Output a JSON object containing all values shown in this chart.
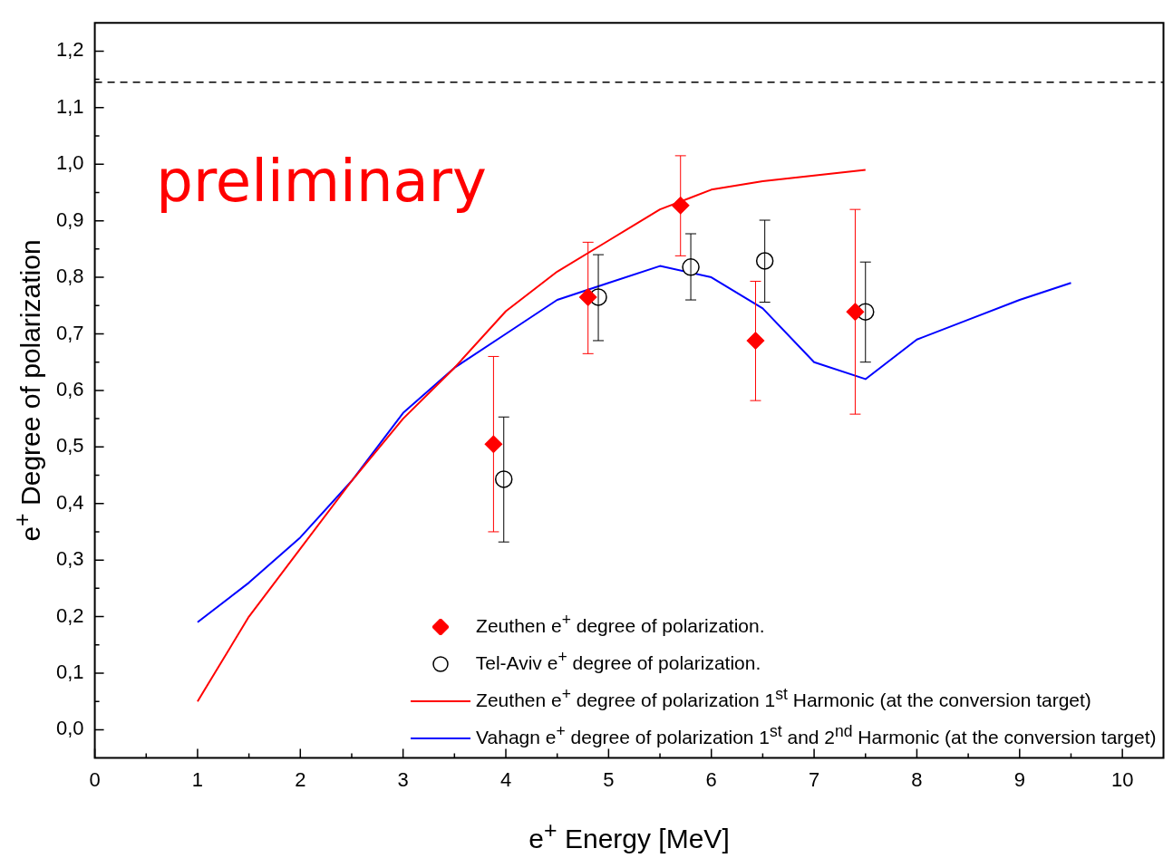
{
  "chart_data": {
    "type": "scatter",
    "xlabel": "e$^{+}$ Energy [MeV]",
    "ylabel": "e$^{+}$ Degree of polarization",
    "xlim": [
      0,
      10.4
    ],
    "ylim": [
      -0.05,
      1.25
    ],
    "xticks": [
      0,
      1,
      2,
      3,
      4,
      5,
      6,
      7,
      8,
      9,
      10
    ],
    "yticks": [
      {
        "value": 0,
        "label": "0,0"
      },
      {
        "value": 0.1,
        "label": "0,1"
      },
      {
        "value": 0.2,
        "label": "0,2"
      },
      {
        "value": 0.3,
        "label": "0,3"
      },
      {
        "value": 0.4,
        "label": "0,4"
      },
      {
        "value": 0.5,
        "label": "0,5"
      },
      {
        "value": 0.6,
        "label": "0,6"
      },
      {
        "value": 0.7,
        "label": "0,7"
      },
      {
        "value": 0.8,
        "label": "0,8"
      },
      {
        "value": 0.9,
        "label": "0,9"
      },
      {
        "value": 1.0,
        "label": "1,0"
      },
      {
        "value": 1.1,
        "label": "1,1"
      },
      {
        "value": 1.2,
        "label": "1,2"
      }
    ],
    "grid": false,
    "legend": "bottom right",
    "annotations": [
      "preliminary"
    ],
    "ref_lines": [
      {
        "axis": "y",
        "value": 1.145,
        "color": "#000000",
        "line_style": "dashed"
      }
    ],
    "series": [
      {
        "name": "Zeuthen e$^{+}$ degree of polarization.",
        "type": "scatter",
        "marker": "diamond",
        "color": "#ff0000",
        "x": [
          3.88,
          4.8,
          5.7,
          6.43,
          7.4
        ],
        "values": [
          0.505,
          0.765,
          0.927,
          0.688,
          0.739
        ],
        "errors": [
          [
            0.35,
            0.66
          ],
          [
            0.665,
            0.862
          ],
          [
            0.838,
            1.015
          ],
          [
            0.582,
            0.793
          ],
          [
            0.558,
            0.92
          ]
        ]
      },
      {
        "name": "Tel-Aviv e$^{+}$ degree of polarization.",
        "type": "scatter",
        "marker": "circle",
        "color": "#000000",
        "x": [
          3.98,
          4.9,
          5.8,
          6.52,
          7.5
        ],
        "values": [
          0.443,
          0.765,
          0.818,
          0.829,
          0.739
        ],
        "errors": [
          [
            0.332,
            0.553
          ],
          [
            0.688,
            0.84
          ],
          [
            0.76,
            0.877
          ],
          [
            0.756,
            0.901
          ],
          [
            0.65,
            0.827
          ]
        ]
      },
      {
        "name": "Zeuthen e$^{+}$ degree of polarization 1$^{st}$ Harmonic (at the conversion target)",
        "type": "line",
        "marker": "none",
        "color": "#ff0000",
        "x": [
          1,
          1.5,
          2,
          2.5,
          3,
          3.5,
          4,
          4.5,
          5,
          5.5,
          6,
          6.5,
          7,
          7.5
        ],
        "values": [
          0.05,
          0.2,
          0.32,
          0.44,
          0.55,
          0.64,
          0.74,
          0.81,
          0.865,
          0.92,
          0.955,
          0.97,
          0.98,
          0.99
        ]
      },
      {
        "name": "Vahagn e$^{+}$ degree of polarization 1$^{st}$ and 2$^{nd}$ Harmonic (at the conversion target)",
        "type": "line",
        "marker": "none",
        "color": "#0000ff",
        "x": [
          1,
          1.5,
          2,
          2.5,
          3,
          3.5,
          4,
          4.5,
          5,
          5.5,
          6,
          6.5,
          7,
          7.5,
          8,
          8.5,
          9,
          9.5
        ],
        "values": [
          0.19,
          0.26,
          0.34,
          0.44,
          0.56,
          0.64,
          0.7,
          0.76,
          0.79,
          0.82,
          0.8,
          0.745,
          0.65,
          0.62,
          0.69,
          0.725,
          0.76,
          0.79
        ]
      }
    ]
  }
}
